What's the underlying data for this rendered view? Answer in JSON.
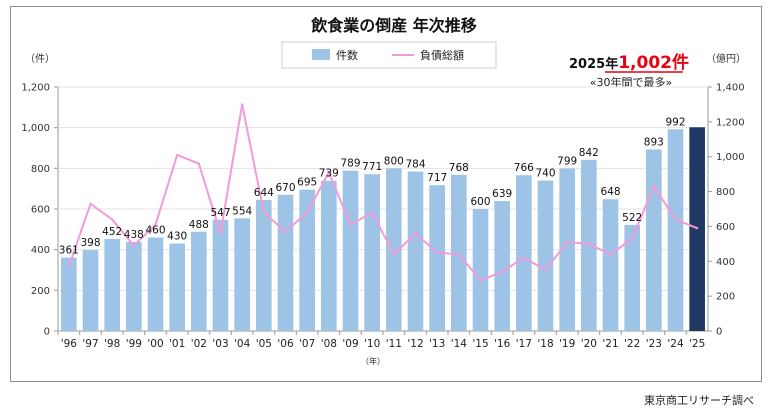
{
  "chart_data": {
    "type": "bar",
    "title": "飲食業の倒産 年次推移",
    "y_left_unit": "（件）",
    "y_right_unit": "（億円）",
    "x_unit": "（年）",
    "categories": [
      "'96",
      "'97",
      "'98",
      "'99",
      "'00",
      "'01",
      "'02",
      "'03",
      "'04",
      "'05",
      "'06",
      "'07",
      "'08",
      "'09",
      "'10",
      "'11",
      "'12",
      "'13",
      "'14",
      "'15",
      "'16",
      "'17",
      "'18",
      "'19",
      "'20",
      "'21",
      "'22",
      "'23",
      "'24",
      "'25"
    ],
    "series": [
      {
        "name": "件数",
        "type": "bar",
        "axis": "left",
        "values": [
          361,
          398,
          452,
          438,
          460,
          430,
          488,
          547,
          554,
          644,
          670,
          695,
          739,
          789,
          771,
          800,
          784,
          717,
          768,
          600,
          639,
          766,
          740,
          799,
          842,
          648,
          522,
          893,
          992,
          1002
        ],
        "labels": [
          "361",
          "398",
          "452",
          "438",
          "460",
          "430",
          "488",
          "547",
          "554",
          "644",
          "670",
          "695",
          "739",
          "789",
          "771",
          "800",
          "784",
          "717",
          "768",
          "600",
          "639",
          "766",
          "740",
          "799",
          "842",
          "648",
          "522",
          "893",
          "992",
          ""
        ]
      },
      {
        "name": "負債総額",
        "type": "line",
        "axis": "right",
        "values": [
          370,
          730,
          640,
          490,
          610,
          1010,
          960,
          560,
          1300,
          680,
          570,
          680,
          910,
          610,
          680,
          440,
          560,
          450,
          440,
          290,
          340,
          420,
          350,
          510,
          500,
          440,
          530,
          830,
          640,
          590
        ]
      }
    ],
    "ylim_left": [
      0,
      1200
    ],
    "ylim_right": [
      0,
      1400
    ],
    "yticks_left": [
      "0",
      "200",
      "400",
      "600",
      "800",
      "1,000",
      "1,200"
    ],
    "yticks_right": [
      "0",
      "200",
      "400",
      "600",
      "800",
      "1,000",
      "1,200",
      "1,400"
    ],
    "legend_position": "top",
    "highlight_last_bar": true,
    "annotation": {
      "prefix": "2025年",
      "value": "1,002件",
      "sub": "«30年間で最多»"
    },
    "source": "東京商工リサーチ調べ",
    "colors": {
      "bar": "#9dc3e6",
      "bar_highlight": "#1f3864",
      "line": "#f39ad8",
      "annotation_red": "#e60012"
    }
  }
}
